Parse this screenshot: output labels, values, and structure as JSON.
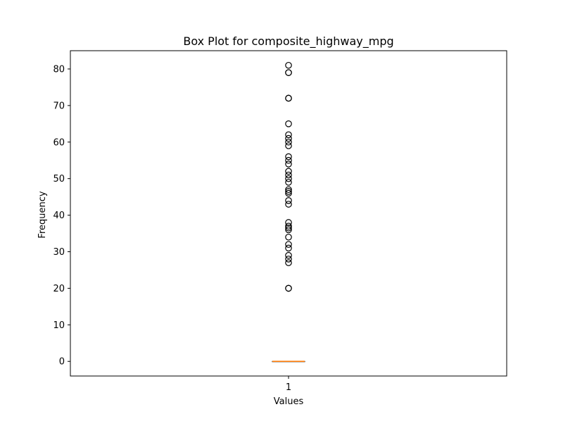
{
  "chart_data": {
    "type": "box",
    "title": "Box Plot for composite_highway_mpg",
    "xlabel": "Values",
    "ylabel": "Frequency",
    "categories": [
      "1"
    ],
    "ylim": [
      -4,
      85
    ],
    "yticks": [
      0,
      10,
      20,
      30,
      40,
      50,
      60,
      70,
      80
    ],
    "grid": false,
    "box": {
      "q1": 0,
      "median": 0,
      "q3": 0,
      "whisker_low": 0,
      "whisker_high": 0
    },
    "outliers": [
      20,
      20,
      27,
      28,
      29,
      31,
      32,
      34,
      36,
      36.5,
      37,
      38,
      43,
      44,
      46,
      46.5,
      47,
      49,
      50,
      51,
      52,
      54,
      55,
      56,
      59,
      60,
      61,
      62,
      65,
      72,
      72,
      79,
      79,
      81
    ],
    "colors": {
      "median": "#ff7f0e",
      "box": "#000000",
      "outlier": "#000000",
      "axes": "#000000"
    }
  }
}
